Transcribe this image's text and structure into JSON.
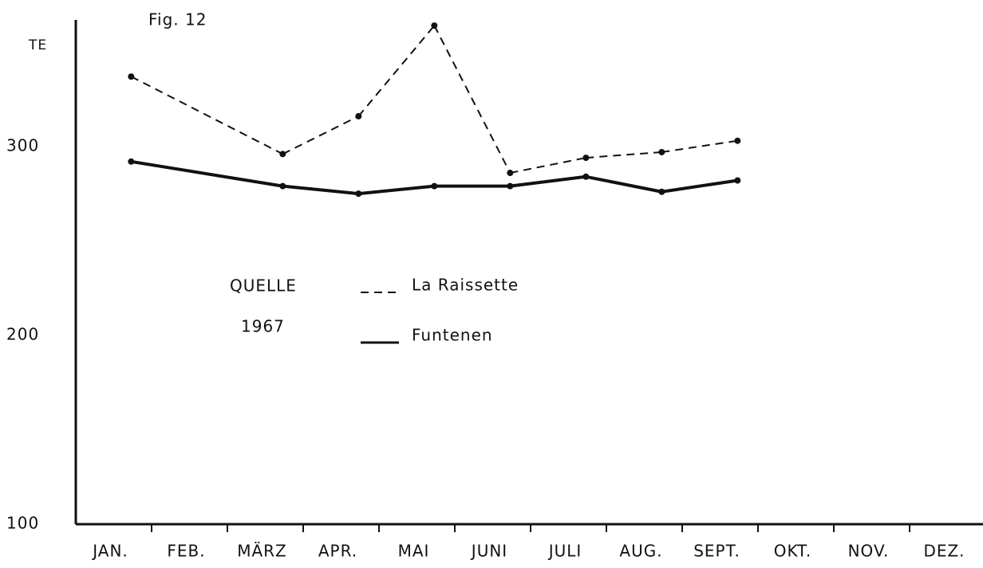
{
  "chart_data": {
    "type": "line",
    "title": "Fig. 12",
    "y_label": "TE",
    "annotations": [
      "QUELLE",
      "1967"
    ],
    "categories": [
      "JAN.",
      "FEB.",
      "MÄRZ",
      "APR.",
      "MAI",
      "JUNI",
      "JULI",
      "AUG.",
      "SEPT.",
      "OKT.",
      "NOV.",
      "DEZ."
    ],
    "series": [
      {
        "name": "La Raissette",
        "color": "#111111",
        "dash": true,
        "values": [
          337,
          null,
          296,
          316,
          364,
          286,
          294,
          297,
          303,
          null,
          null,
          null
        ]
      },
      {
        "name": "Funtenen",
        "color": "#111111",
        "dash": false,
        "values": [
          292,
          null,
          279,
          275,
          279,
          279,
          284,
          276,
          282,
          null,
          null,
          null
        ]
      }
    ],
    "ylim": [
      100,
      367
    ],
    "yticks": [
      100,
      200,
      300
    ],
    "grid": false
  }
}
